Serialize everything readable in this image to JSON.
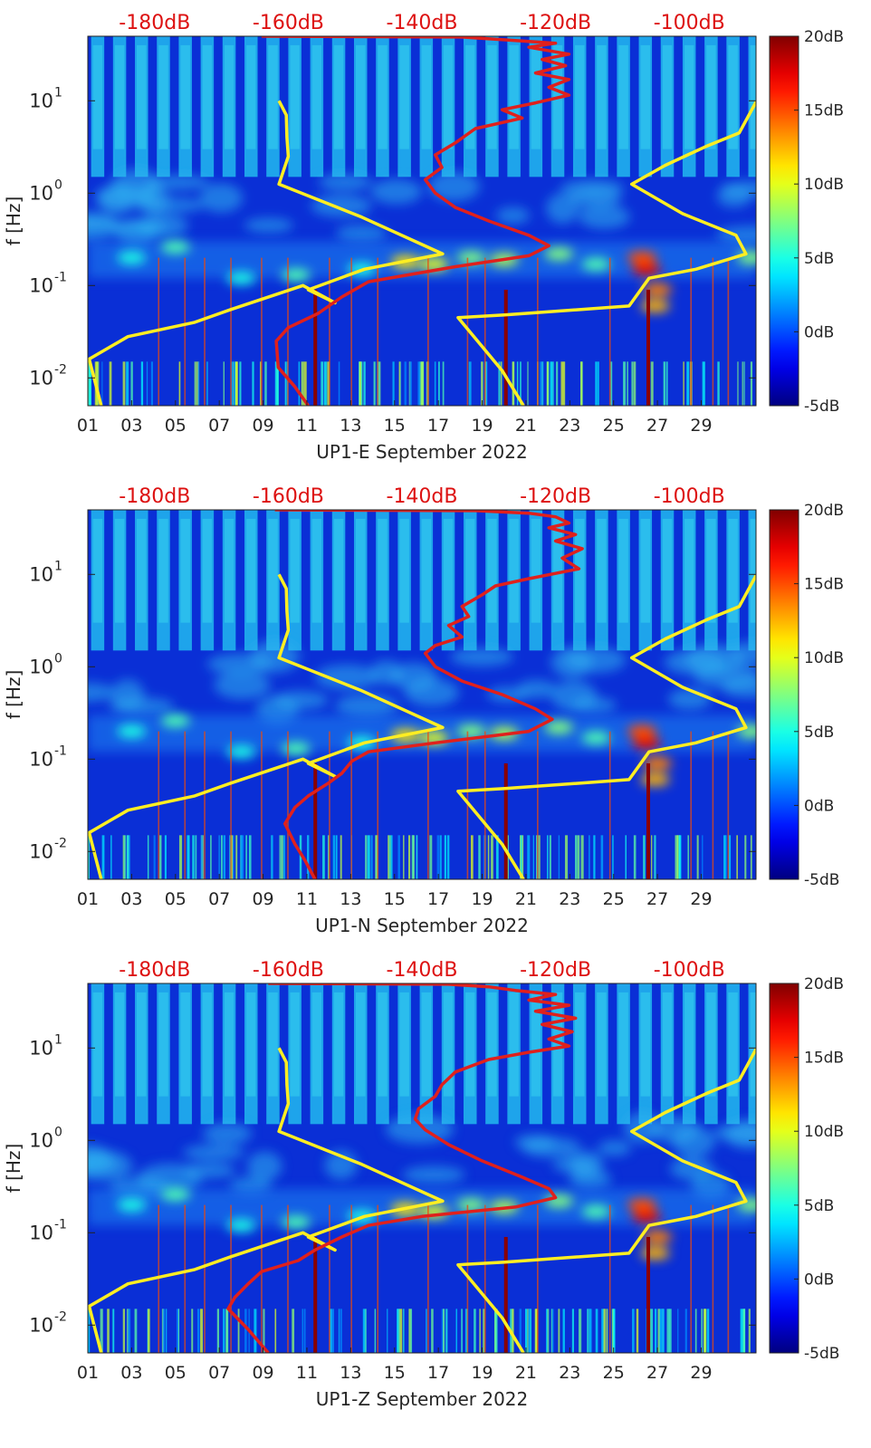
{
  "panel_colors": {
    "spectrogram_background": "#0a2fd6",
    "noise_model_curve": "#ffee22",
    "psd_curve": "#e0201c",
    "top_db_labels": "#dd1111"
  },
  "colorbar": {
    "colormap": "jet",
    "range": [
      -5,
      20
    ],
    "tick_values": [
      -5,
      0,
      5,
      10,
      15,
      20
    ],
    "tick_labels": [
      "-5dB",
      "0dB",
      "5dB",
      "10dB",
      "15dB",
      "20dB"
    ]
  },
  "top_axis": {
    "range": [
      -190,
      -90
    ],
    "tick_values": [
      -180,
      -160,
      -140,
      -120,
      -100
    ],
    "tick_labels": [
      "-180dB",
      "-160dB",
      "-140dB",
      "-120dB",
      "-100dB"
    ]
  },
  "chart_data": [
    {
      "type": "heatmap",
      "channel": "UP1-E",
      "xlabel": "UP1-E September 2022",
      "ylabel": "f [Hz]",
      "x_range": [
        1,
        31.5
      ],
      "x_tick_values": [
        1,
        3,
        5,
        7,
        9,
        11,
        13,
        15,
        17,
        19,
        21,
        23,
        25,
        27,
        29
      ],
      "x_tick_labels": [
        "01",
        "03",
        "05",
        "07",
        "09",
        "11",
        "13",
        "15",
        "17",
        "19",
        "21",
        "23",
        "25",
        "27",
        "29"
      ],
      "y_scale": "log",
      "y_range": [
        0.005,
        50
      ],
      "y_ticks": [
        {
          "value": 0.01,
          "base": "10",
          "exp": "-2"
        },
        {
          "value": 0.1,
          "base": "10",
          "exp": "-1"
        },
        {
          "value": 1,
          "base": "10",
          "exp": "0"
        },
        {
          "value": 10,
          "base": "10",
          "exp": "1"
        }
      ],
      "yellow_left": [
        [
          -161.4,
          10
        ],
        [
          -160.3,
          7
        ],
        [
          -160.2,
          4
        ],
        [
          -160.0,
          2.5
        ],
        [
          -161.4,
          1.25
        ],
        [
          -149.0,
          0.55
        ],
        [
          -136.9,
          0.22
        ],
        [
          -148.6,
          0.15
        ],
        [
          -157.0,
          0.09
        ],
        [
          -153.0,
          0.065
        ],
        [
          -157.8,
          0.1
        ],
        [
          -168.6,
          0.055
        ],
        [
          -174.0,
          0.04
        ],
        [
          -184.0,
          0.028
        ],
        [
          -189.8,
          0.016
        ],
        [
          -188.0,
          0.005
        ]
      ],
      "yellow_right": [
        [
          -89.9,
          10
        ],
        [
          -92.5,
          4.5
        ],
        [
          -97.5,
          3.2
        ],
        [
          -103.6,
          2.0
        ],
        [
          -108.6,
          1.25
        ],
        [
          -101.0,
          0.6
        ],
        [
          -93.0,
          0.35
        ],
        [
          -91.5,
          0.22
        ],
        [
          -99.0,
          0.15
        ],
        [
          -106.0,
          0.12
        ],
        [
          -109.0,
          0.06
        ],
        [
          -127.6,
          0.048
        ],
        [
          -134.6,
          0.045
        ],
        [
          -128.0,
          0.012
        ],
        [
          -124.8,
          0.005
        ]
      ],
      "red_psd": [
        [
          -164.0,
          50
        ],
        [
          -134.0,
          49
        ],
        [
          -126.0,
          45
        ],
        [
          -120.0,
          42
        ],
        [
          -124.0,
          38
        ],
        [
          -118.0,
          32
        ],
        [
          -122.0,
          28
        ],
        [
          -118.5,
          24
        ],
        [
          -123.0,
          20
        ],
        [
          -118.0,
          17
        ],
        [
          -121.0,
          14
        ],
        [
          -118.0,
          11.5
        ],
        [
          -123.0,
          9.5
        ],
        [
          -128.0,
          8
        ],
        [
          -125.0,
          6.5
        ],
        [
          -132.0,
          5
        ],
        [
          -135.0,
          3.5
        ],
        [
          -138.0,
          2.6
        ],
        [
          -137.0,
          1.9
        ],
        [
          -139.5,
          1.4
        ],
        [
          -138.0,
          1.0
        ],
        [
          -135.0,
          0.7
        ],
        [
          -130.0,
          0.5
        ],
        [
          -124.0,
          0.35
        ],
        [
          -121.0,
          0.27
        ],
        [
          -124.0,
          0.21
        ],
        [
          -135.0,
          0.16
        ],
        [
          -148.0,
          0.11
        ],
        [
          -152.0,
          0.075
        ],
        [
          -155.5,
          0.05
        ],
        [
          -160.0,
          0.035
        ],
        [
          -161.8,
          0.025
        ],
        [
          -161.5,
          0.013
        ],
        [
          -159.0,
          0.008
        ],
        [
          -157.0,
          0.005
        ]
      ],
      "hot_spots": [
        [
          26.5,
          0.15,
          0.9
        ],
        [
          26.3,
          0.2,
          0.8
        ],
        [
          27.0,
          0.09,
          0.75
        ],
        [
          26.9,
          0.06,
          0.7
        ],
        [
          15.5,
          0.18,
          0.65
        ],
        [
          16.8,
          0.17,
          0.6
        ],
        [
          18.5,
          0.2,
          0.5
        ],
        [
          20.0,
          0.19,
          0.55
        ],
        [
          22.5,
          0.22,
          0.5
        ],
        [
          24.2,
          0.17,
          0.45
        ],
        [
          5.0,
          0.26,
          0.45
        ],
        [
          3.0,
          0.2,
          0.4
        ],
        [
          10.5,
          0.13,
          0.45
        ],
        [
          8.0,
          0.12,
          0.4
        ],
        [
          13.5,
          0.15,
          0.4
        ],
        [
          31.3,
          0.2,
          0.5
        ]
      ],
      "spikes": [
        11.3,
        20.0,
        26.5,
        4.2,
        5.4,
        6.3,
        7.5,
        8.9,
        10.1,
        12.0,
        13.0,
        14.2,
        16.5,
        18.3,
        19.1,
        21.5,
        24.8,
        28.5,
        29.5,
        30.2
      ]
    },
    {
      "type": "heatmap",
      "channel": "UP1-N",
      "xlabel": "UP1-N September 2022",
      "ylabel": "f [Hz]",
      "x_range": [
        1,
        31.5
      ],
      "x_tick_values": [
        1,
        3,
        5,
        7,
        9,
        11,
        13,
        15,
        17,
        19,
        21,
        23,
        25,
        27,
        29
      ],
      "x_tick_labels": [
        "01",
        "03",
        "05",
        "07",
        "09",
        "11",
        "13",
        "15",
        "17",
        "19",
        "21",
        "23",
        "25",
        "27",
        "29"
      ],
      "y_scale": "log",
      "y_range": [
        0.005,
        50
      ],
      "y_ticks": [
        {
          "value": 0.01,
          "base": "10",
          "exp": "-2"
        },
        {
          "value": 0.1,
          "base": "10",
          "exp": "-1"
        },
        {
          "value": 1,
          "base": "10",
          "exp": "0"
        },
        {
          "value": 10,
          "base": "10",
          "exp": "1"
        }
      ],
      "yellow_left": [
        [
          -161.4,
          10
        ],
        [
          -160.3,
          7
        ],
        [
          -160.2,
          4
        ],
        [
          -160.0,
          2.5
        ],
        [
          -161.4,
          1.25
        ],
        [
          -149.0,
          0.55
        ],
        [
          -136.9,
          0.22
        ],
        [
          -148.6,
          0.15
        ],
        [
          -157.0,
          0.09
        ],
        [
          -153.0,
          0.065
        ],
        [
          -157.8,
          0.1
        ],
        [
          -168.6,
          0.055
        ],
        [
          -174.0,
          0.04
        ],
        [
          -184.0,
          0.028
        ],
        [
          -189.8,
          0.016
        ],
        [
          -188.0,
          0.005
        ]
      ],
      "yellow_right": [
        [
          -89.9,
          10
        ],
        [
          -92.5,
          4.5
        ],
        [
          -97.5,
          3.2
        ],
        [
          -103.6,
          2.0
        ],
        [
          -108.6,
          1.25
        ],
        [
          -101.0,
          0.6
        ],
        [
          -93.0,
          0.35
        ],
        [
          -91.5,
          0.22
        ],
        [
          -99.0,
          0.15
        ],
        [
          -106.0,
          0.12
        ],
        [
          -109.0,
          0.06
        ],
        [
          -127.6,
          0.048
        ],
        [
          -134.6,
          0.045
        ],
        [
          -128.0,
          0.012
        ],
        [
          -124.8,
          0.005
        ]
      ],
      "red_psd": [
        [
          -162.0,
          50
        ],
        [
          -132.0,
          49
        ],
        [
          -124.0,
          46
        ],
        [
          -120.0,
          42
        ],
        [
          -118.0,
          36
        ],
        [
          -121.0,
          32
        ],
        [
          -117.0,
          27
        ],
        [
          -120.0,
          23
        ],
        [
          -116.0,
          19
        ],
        [
          -119.0,
          15
        ],
        [
          -116.5,
          11.5
        ],
        [
          -124.0,
          9.0
        ],
        [
          -129.0,
          7.5
        ],
        [
          -131.0,
          6
        ],
        [
          -134.0,
          4.5
        ],
        [
          -133.0,
          3.5
        ],
        [
          -136.0,
          2.8
        ],
        [
          -134.0,
          2.1
        ],
        [
          -138.0,
          1.7
        ],
        [
          -139.5,
          1.4
        ],
        [
          -138.0,
          1.0
        ],
        [
          -134.0,
          0.7
        ],
        [
          -128.0,
          0.5
        ],
        [
          -123.0,
          0.35
        ],
        [
          -120.5,
          0.27
        ],
        [
          -124.0,
          0.2
        ],
        [
          -138.0,
          0.15
        ],
        [
          -148.0,
          0.12
        ],
        [
          -150.5,
          0.095
        ],
        [
          -152.0,
          0.07
        ],
        [
          -154.0,
          0.055
        ],
        [
          -157.0,
          0.04
        ],
        [
          -159.0,
          0.03
        ],
        [
          -160.5,
          0.02
        ],
        [
          -159.0,
          0.012
        ],
        [
          -157.5,
          0.008
        ],
        [
          -156.0,
          0.005
        ]
      ],
      "hot_spots": [
        [
          26.5,
          0.15,
          0.9
        ],
        [
          26.3,
          0.2,
          0.8
        ],
        [
          27.0,
          0.09,
          0.75
        ],
        [
          26.9,
          0.06,
          0.7
        ],
        [
          15.5,
          0.18,
          0.65
        ],
        [
          16.8,
          0.17,
          0.6
        ],
        [
          18.5,
          0.2,
          0.5
        ],
        [
          20.0,
          0.19,
          0.55
        ],
        [
          22.5,
          0.22,
          0.5
        ],
        [
          24.2,
          0.17,
          0.45
        ],
        [
          5.0,
          0.26,
          0.45
        ],
        [
          3.0,
          0.2,
          0.4
        ],
        [
          10.5,
          0.13,
          0.45
        ],
        [
          8.0,
          0.12,
          0.4
        ],
        [
          13.5,
          0.15,
          0.4
        ],
        [
          31.3,
          0.2,
          0.5
        ]
      ],
      "spikes": [
        11.3,
        20.0,
        26.5,
        4.2,
        5.4,
        6.3,
        7.5,
        8.9,
        10.1,
        12.0,
        13.0,
        14.2,
        16.5,
        18.3,
        19.1,
        21.5,
        24.8,
        28.5,
        29.5,
        30.2
      ]
    },
    {
      "type": "heatmap",
      "channel": "UP1-Z",
      "xlabel": "UP1-Z September 2022",
      "ylabel": "f [Hz]",
      "x_range": [
        1,
        31.5
      ],
      "x_tick_values": [
        1,
        3,
        5,
        7,
        9,
        11,
        13,
        15,
        17,
        19,
        21,
        23,
        25,
        27,
        29
      ],
      "x_tick_labels": [
        "01",
        "03",
        "05",
        "07",
        "09",
        "11",
        "13",
        "15",
        "17",
        "19",
        "21",
        "23",
        "25",
        "27",
        "29"
      ],
      "y_scale": "log",
      "y_range": [
        0.005,
        50
      ],
      "y_ticks": [
        {
          "value": 0.01,
          "base": "10",
          "exp": "-2"
        },
        {
          "value": 0.1,
          "base": "10",
          "exp": "-1"
        },
        {
          "value": 1,
          "base": "10",
          "exp": "0"
        },
        {
          "value": 10,
          "base": "10",
          "exp": "1"
        }
      ],
      "yellow_left": [
        [
          -161.4,
          10
        ],
        [
          -160.3,
          7
        ],
        [
          -160.2,
          4
        ],
        [
          -160.0,
          2.5
        ],
        [
          -161.4,
          1.25
        ],
        [
          -149.0,
          0.55
        ],
        [
          -136.9,
          0.22
        ],
        [
          -148.6,
          0.15
        ],
        [
          -157.0,
          0.09
        ],
        [
          -153.0,
          0.065
        ],
        [
          -157.8,
          0.1
        ],
        [
          -168.6,
          0.055
        ],
        [
          -174.0,
          0.04
        ],
        [
          -184.0,
          0.028
        ],
        [
          -189.8,
          0.016
        ],
        [
          -188.0,
          0.005
        ]
      ],
      "yellow_right": [
        [
          -89.9,
          10
        ],
        [
          -92.5,
          4.5
        ],
        [
          -97.5,
          3.2
        ],
        [
          -103.6,
          2.0
        ],
        [
          -108.6,
          1.25
        ],
        [
          -101.0,
          0.6
        ],
        [
          -93.0,
          0.35
        ],
        [
          -91.5,
          0.22
        ],
        [
          -99.0,
          0.15
        ],
        [
          -106.0,
          0.12
        ],
        [
          -109.0,
          0.06
        ],
        [
          -127.6,
          0.048
        ],
        [
          -134.6,
          0.045
        ],
        [
          -128.0,
          0.012
        ],
        [
          -124.8,
          0.005
        ]
      ],
      "red_psd": [
        [
          -163.0,
          50
        ],
        [
          -136.0,
          49
        ],
        [
          -130.0,
          46
        ],
        [
          -126.0,
          42
        ],
        [
          -120.0,
          38
        ],
        [
          -124.0,
          33
        ],
        [
          -118.0,
          29
        ],
        [
          -123.0,
          25
        ],
        [
          -117.0,
          21
        ],
        [
          -122.0,
          18
        ],
        [
          -117.5,
          15
        ],
        [
          -121.0,
          12.5
        ],
        [
          -118.0,
          10.5
        ],
        [
          -124.0,
          9
        ],
        [
          -130.0,
          7.5
        ],
        [
          -135.0,
          5.5
        ],
        [
          -137.0,
          4
        ],
        [
          -138.0,
          3
        ],
        [
          -140.5,
          2.2
        ],
        [
          -141.0,
          1.7
        ],
        [
          -139.5,
          1.3
        ],
        [
          -136.0,
          0.9
        ],
        [
          -131.0,
          0.6
        ],
        [
          -125.0,
          0.4
        ],
        [
          -121.0,
          0.3
        ],
        [
          -120.0,
          0.24
        ],
        [
          -126.0,
          0.19
        ],
        [
          -140.0,
          0.15
        ],
        [
          -148.0,
          0.12
        ],
        [
          -152.0,
          0.09
        ],
        [
          -156.0,
          0.065
        ],
        [
          -158.5,
          0.05
        ],
        [
          -164.0,
          0.038
        ],
        [
          -166.0,
          0.028
        ],
        [
          -168.0,
          0.02
        ],
        [
          -169.0,
          0.015
        ],
        [
          -166.0,
          0.009
        ],
        [
          -163.0,
          0.005
        ]
      ],
      "hot_spots": [
        [
          26.5,
          0.15,
          0.9
        ],
        [
          26.3,
          0.2,
          0.8
        ],
        [
          27.0,
          0.09,
          0.75
        ],
        [
          26.9,
          0.06,
          0.7
        ],
        [
          15.5,
          0.18,
          0.65
        ],
        [
          16.8,
          0.17,
          0.6
        ],
        [
          18.5,
          0.2,
          0.5
        ],
        [
          20.0,
          0.19,
          0.55
        ],
        [
          22.5,
          0.22,
          0.5
        ],
        [
          24.2,
          0.17,
          0.45
        ],
        [
          5.0,
          0.26,
          0.45
        ],
        [
          3.0,
          0.2,
          0.4
        ],
        [
          10.5,
          0.13,
          0.45
        ],
        [
          8.0,
          0.12,
          0.4
        ],
        [
          13.5,
          0.15,
          0.4
        ],
        [
          31.3,
          0.2,
          0.5
        ]
      ],
      "spikes": [
        11.3,
        20.0,
        26.5,
        4.2,
        5.4,
        6.3,
        7.5,
        8.9,
        10.1,
        12.0,
        13.0,
        14.2,
        16.5,
        18.3,
        19.1,
        21.5,
        24.8,
        28.5,
        29.5,
        30.2
      ]
    }
  ]
}
